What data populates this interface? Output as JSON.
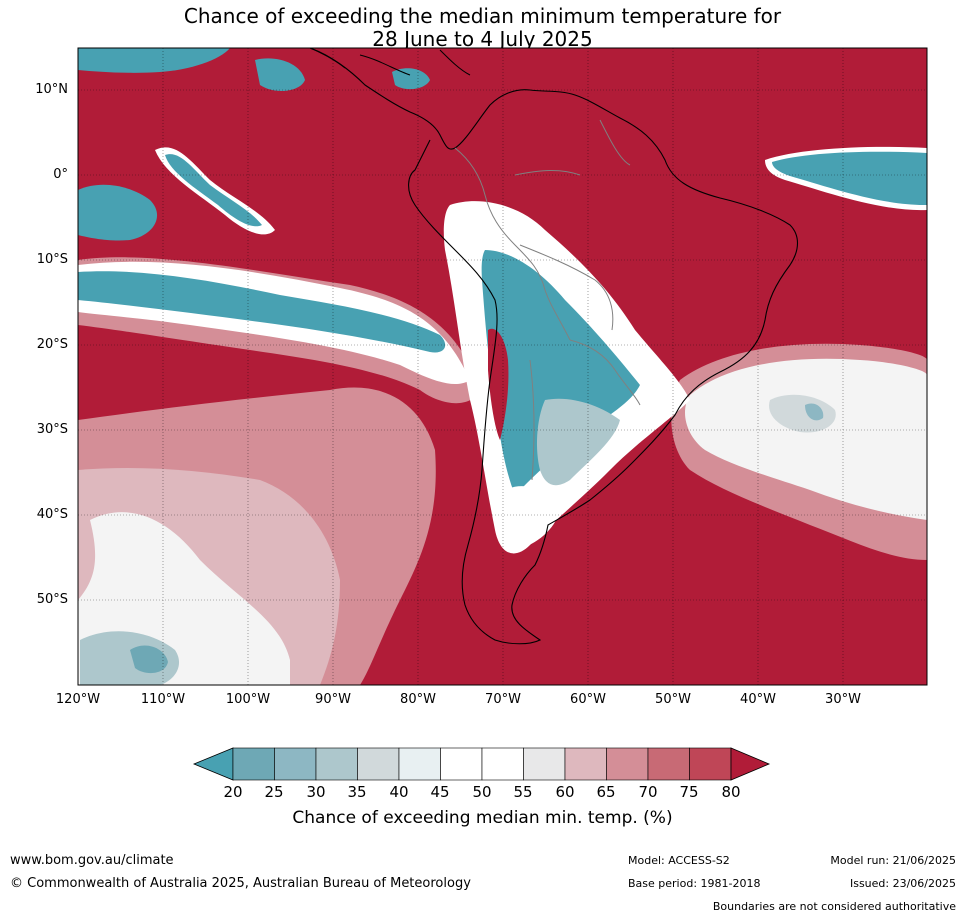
{
  "title": {
    "line1": "Chance of exceeding the median minimum temperature for",
    "line2": "28 June to 4 July 2025"
  },
  "map": {
    "lat_labels": [
      "10°N",
      "0°",
      "10°S",
      "20°S",
      "30°S",
      "40°S",
      "50°S"
    ],
    "lon_labels": [
      "120°W",
      "110°W",
      "100°W",
      "90°W",
      "80°W",
      "70°W",
      "60°W",
      "50°W",
      "40°W",
      "30°W"
    ],
    "colors": {
      "high": "#b11c38",
      "low": "#48a1b2",
      "coast": "#000000",
      "borders": "#808080"
    }
  },
  "colorbar": {
    "ticks": [
      "20",
      "25",
      "30",
      "35",
      "40",
      "45",
      "50",
      "55",
      "60",
      "65",
      "70",
      "75",
      "80"
    ],
    "colors": [
      "#48a1b2",
      "#6ea8b5",
      "#8db7c3",
      "#adc7cc",
      "#d1d9db",
      "#e8f0f2",
      "#ffffff",
      "#ffffff",
      "#e8e8e9",
      "#deb8be",
      "#d48e97",
      "#c86a75",
      "#bf4657",
      "#b11c38"
    ],
    "label": "Chance of exceeding median min. temp. (%)"
  },
  "footer": {
    "website": "www.bom.gov.au/climate",
    "copyright": "© Commonwealth of Australia 2025, Australian Bureau of Meteorology",
    "model": "Model: ACCESS-S2",
    "base_period": "Base period: 1981-2018",
    "model_run": "Model run: 21/06/2025",
    "issued": "Issued: 23/06/2025",
    "disclaimer": "Boundaries are not considered authoritative"
  }
}
